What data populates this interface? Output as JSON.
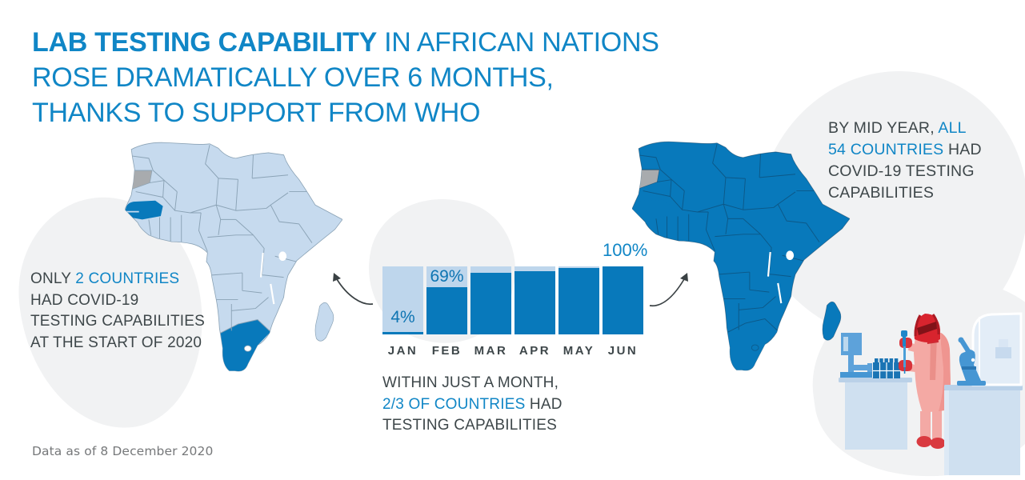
{
  "title": {
    "highlight": "LAB TESTING CAPABILITY",
    "line1_rest": " IN AFRICAN NATIONS",
    "line2": "ROSE DRAMATICALLY OVER 6 MONTHS,",
    "line3": "THANKS TO SUPPORT FROM WHO"
  },
  "annotations": {
    "start": {
      "prefix": "ONLY ",
      "highlight": "2 COUNTRIES",
      "line2": "HAD COVID-19",
      "line3": "TESTING CAPABILITIES",
      "line4": "AT THE START OF 2020"
    },
    "month": {
      "line1": "WITHIN JUST A MONTH,",
      "highlight": "2/3 OF COUNTRIES",
      "line2_rest": " HAD",
      "line3": "TESTING CAPABILITIES"
    },
    "midyear": {
      "prefix": "BY MID YEAR, ",
      "highlight1": "ALL",
      "highlight2": "54 COUNTRIES",
      "line2_rest": " HAD",
      "line3": "COVID-19 TESTING",
      "line4": "CAPABILITIES"
    }
  },
  "chart_data": {
    "type": "bar",
    "categories": [
      "JAN",
      "FEB",
      "MAR",
      "APR",
      "MAY",
      "JUN"
    ],
    "values": [
      4,
      69,
      91,
      93,
      98,
      100
    ],
    "value_labels": [
      "4%",
      "69%",
      "",
      "",
      "",
      "100%"
    ],
    "label_placement": [
      "inside-bottom",
      "inside-top",
      "",
      "",
      "",
      "above"
    ],
    "ylim": [
      0,
      100
    ],
    "grid": false,
    "legend": false
  },
  "maps": {
    "start": {
      "highlighted_countries": [
        "Senegal",
        "South Africa"
      ],
      "no_data_region": "Western Sahara"
    },
    "midyear": {
      "highlighted_countries": "all 54 countries",
      "no_data_region": "Western Sahara"
    }
  },
  "footnote": "Data as of 8 December 2020",
  "colors": {
    "accent": "#1086c6",
    "text_dark": "#3e474a",
    "bar_fill": "#0879bb",
    "bar_track": "#bed6ec",
    "label_blue": "#0d74b2",
    "map_light": "#c6daee",
    "map_dark": "#0879bb",
    "map_nodata": "#a8abae",
    "footnote": "#76787a",
    "blob": "#f1f2f3",
    "arrow": "#3a4144"
  }
}
